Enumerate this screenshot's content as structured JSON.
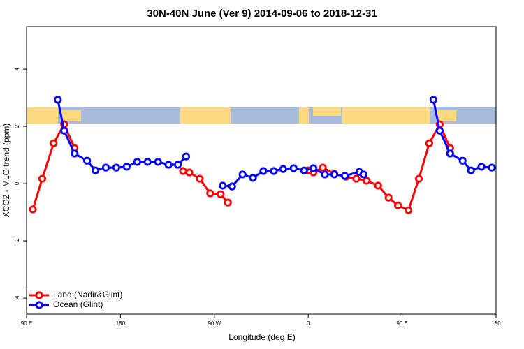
{
  "chart_data": {
    "type": "line",
    "title": "30N-40N June (Ver 9)   2014-09-06 to 2018-12-31",
    "x_label": "Longitude (deg E)",
    "y_label": "XCO2 - MLO trend (ppm)",
    "xlim": [
      90,
      540
    ],
    "xticks": [
      {
        "value": 90,
        "label": "90 E"
      },
      {
        "value": 180,
        "label": "180"
      },
      {
        "value": 270,
        "label": "90 W"
      },
      {
        "value": 360,
        "label": "0"
      },
      {
        "value": 450,
        "label": "90 E"
      },
      {
        "value": 540,
        "label": "180"
      }
    ],
    "ylim": [
      -4.56,
      5.49
    ],
    "yticks": [
      -4,
      -2,
      0,
      2,
      4
    ],
    "legend": "bottomleft",
    "series": [
      {
        "name": "Land (Nadir&Glint)",
        "color": "#ff0000",
        "x": [
          96,
          105,
          116,
          126,
          136,
          null,
          240,
          246,
          256,
          266,
          276,
          283,
          null,
          360,
          365,
          374,
          385,
          396,
          406,
          416,
          427,
          437,
          446,
          456,
          466,
          476,
          486,
          496
        ],
        "values": [
          -0.9,
          0.17,
          1.41,
          2.07,
          1.24,
          null,
          0.44,
          0.39,
          0.17,
          -0.34,
          -0.37,
          -0.66,
          null,
          0.46,
          0.39,
          0.56,
          0.34,
          0.24,
          0.17,
          0.1,
          -0.07,
          -0.49,
          -0.76,
          -0.93,
          0.17,
          1.41,
          2.07,
          1.24
        ]
      },
      {
        "name": "Ocean (Glint)",
        "color": "#0000ff",
        "x": [
          120,
          126,
          136,
          148,
          156,
          166,
          176,
          186,
          196,
          206,
          216,
          226,
          235,
          243,
          null,
          278,
          287,
          297,
          307,
          317,
          327,
          336,
          346,
          356,
          365,
          376,
          385,
          395,
          409,
          413,
          null,
          480,
          486,
          496,
          508,
          516,
          526,
          536
        ],
        "values": [
          2.93,
          1.85,
          1.05,
          0.8,
          0.46,
          0.56,
          0.56,
          0.59,
          0.76,
          0.76,
          0.76,
          0.66,
          0.66,
          0.95,
          null,
          -0.07,
          -0.1,
          0.32,
          0.2,
          0.44,
          0.44,
          0.51,
          0.54,
          0.46,
          0.54,
          0.32,
          0.32,
          0.27,
          0.41,
          0.32,
          null,
          2.93,
          1.85,
          1.05,
          0.8,
          0.46,
          0.59,
          0.56
        ]
      }
    ]
  }
}
